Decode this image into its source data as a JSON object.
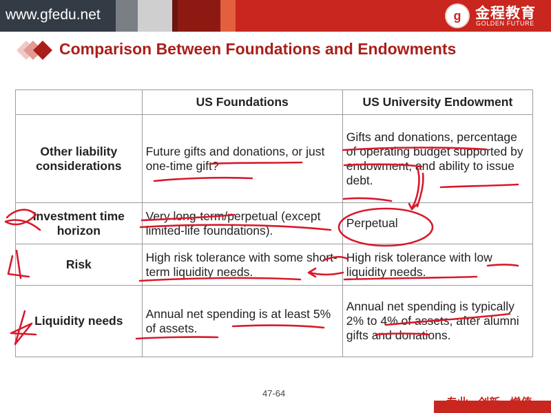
{
  "header": {
    "url": "www.gfedu.net",
    "logo_cn": "金程教育",
    "logo_en": "GOLDEN FUTURE",
    "brand_color": "#c8261e"
  },
  "title": "Comparison Between Foundations and Endowments",
  "table": {
    "headers": [
      "",
      "US Foundations",
      "US University Endowment"
    ],
    "rows": [
      {
        "label": "Other liability considerations",
        "foundations": "Future gifts and donations, or just one-time gift?",
        "endowment": "Gifts and donations, percentage of operating budget supported by endowment, and ability to issue debt."
      },
      {
        "label": "Investment time horizon",
        "foundations": "Very long-term/perpetual (except limited-life foundations).",
        "endowment": "Perpetual"
      },
      {
        "label": "Risk",
        "foundations": "High risk tolerance with some short-term liquidity needs.",
        "endowment": "High risk tolerance with low liquidity needs."
      },
      {
        "label": "Liquidity needs",
        "foundations": "Annual net spending is at least 5% of assets.",
        "endowment": "Annual net spending is typically 2% to 4% of assets, after alumni gifts and donations."
      }
    ]
  },
  "footer": {
    "page": "47-64",
    "slogan": "专业 · 创新 · 增值"
  },
  "ink_color": "#d8192a"
}
